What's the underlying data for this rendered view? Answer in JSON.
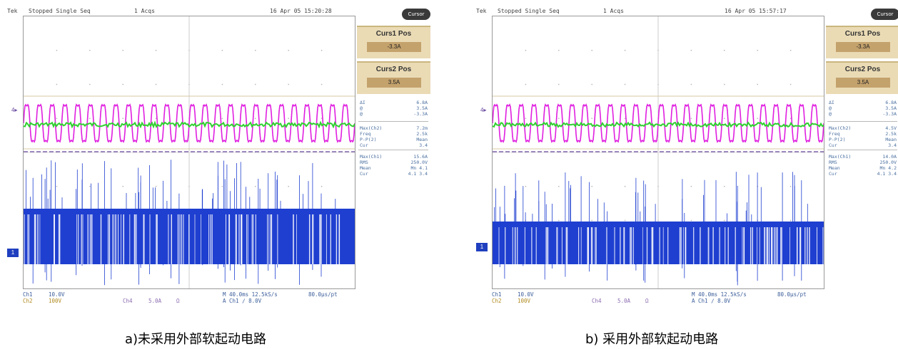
{
  "panels": [
    {
      "id": "a",
      "topbar": {
        "brand": "Tek",
        "status": "Stopped Single Seq",
        "acqs": "1 Acqs",
        "datetime": "16 Apr 05 15:20:28"
      },
      "menu_label": "Cursor",
      "cursor1": {
        "title": "Curs1 Pos",
        "value": "-3.3A"
      },
      "cursor2": {
        "title": "Curs2 Pos",
        "value": "3.5A"
      },
      "readout1": [
        [
          "ΔI",
          "6.8A"
        ],
        [
          "@",
          "3.5A"
        ],
        [
          "@",
          "-3.3A"
        ]
      ],
      "readout2": [
        [
          "Max(Ch2)",
          "7.2m"
        ],
        [
          "Freq",
          "2.5k"
        ],
        [
          "P-P(2)",
          "Mean"
        ],
        [
          "Cur",
          "3.4"
        ]
      ],
      "readout3": [
        [
          "Max(Ch1)",
          "15.6A"
        ],
        [
          "RMS",
          "250.0V"
        ],
        [
          "Mean",
          "Mn 4.1"
        ],
        [
          "Cur",
          "4.1 3.4"
        ]
      ],
      "bottom": {
        "ch1": "Ch1",
        "ch1_scale": "10.0V",
        "ch2": "Ch2",
        "ch2_scale": "100V",
        "ch4": "Ch4",
        "ch4_scale": "5.0A",
        "omega": "Ω",
        "timebase": "M 40.0ms 12.5kS/s",
        "per_pt": "80.0μs/pt",
        "trigger": "A  Ch1  ∕  8.0V"
      }
    },
    {
      "id": "b",
      "topbar": {
        "brand": "Tek",
        "status": "Stopped Single Seq",
        "acqs": "1 Acqs",
        "datetime": "16 Apr 05 15:57:17"
      },
      "menu_label": "Cursor",
      "cursor1": {
        "title": "Curs1 Pos",
        "value": "-3.3A"
      },
      "cursor2": {
        "title": "Curs2 Pos",
        "value": "3.5A"
      },
      "readout1": [
        [
          "ΔI",
          "6.8A"
        ],
        [
          "@",
          "3.5A"
        ],
        [
          "@",
          "-3.3A"
        ]
      ],
      "readout2": [
        [
          "Max(Ch2)",
          "4.5V"
        ],
        [
          "Freq",
          "2.5k"
        ],
        [
          "P-P(2)",
          "Mean"
        ],
        [
          "Cur",
          "3.4"
        ]
      ],
      "readout3": [
        [
          "Max(Ch1)",
          "14.0A"
        ],
        [
          "RMS",
          "250.0V"
        ],
        [
          "Mean",
          "Mn 4.2"
        ],
        [
          "Cur",
          "4.1 3.4"
        ]
      ],
      "bottom": {
        "ch1": "Ch1",
        "ch1_scale": "10.0V",
        "ch2": "Ch2",
        "ch2_scale": "100V",
        "ch4": "Ch4",
        "ch4_scale": "5.0A",
        "omega": "Ω",
        "timebase": "M 40.0ms 12.5kS/s",
        "per_pt": "80.0μs/pt",
        "trigger": "A  Ch1  ∕  8.0V"
      }
    }
  ],
  "captions": {
    "a": "a)未采用外部软起动电路",
    "b": "b) 采用外部软起动电路"
  },
  "colors": {
    "ch1": "#1f3fd0",
    "ch2_magenta": "#e01fe0",
    "ch3_green": "#2fd02f",
    "ch4_purple": "#6a4aa0",
    "panel_bg": "#eadbb5",
    "value_bg": "#c4a26c"
  },
  "markers": {
    "ch1": "1",
    "ch4": "4"
  }
}
